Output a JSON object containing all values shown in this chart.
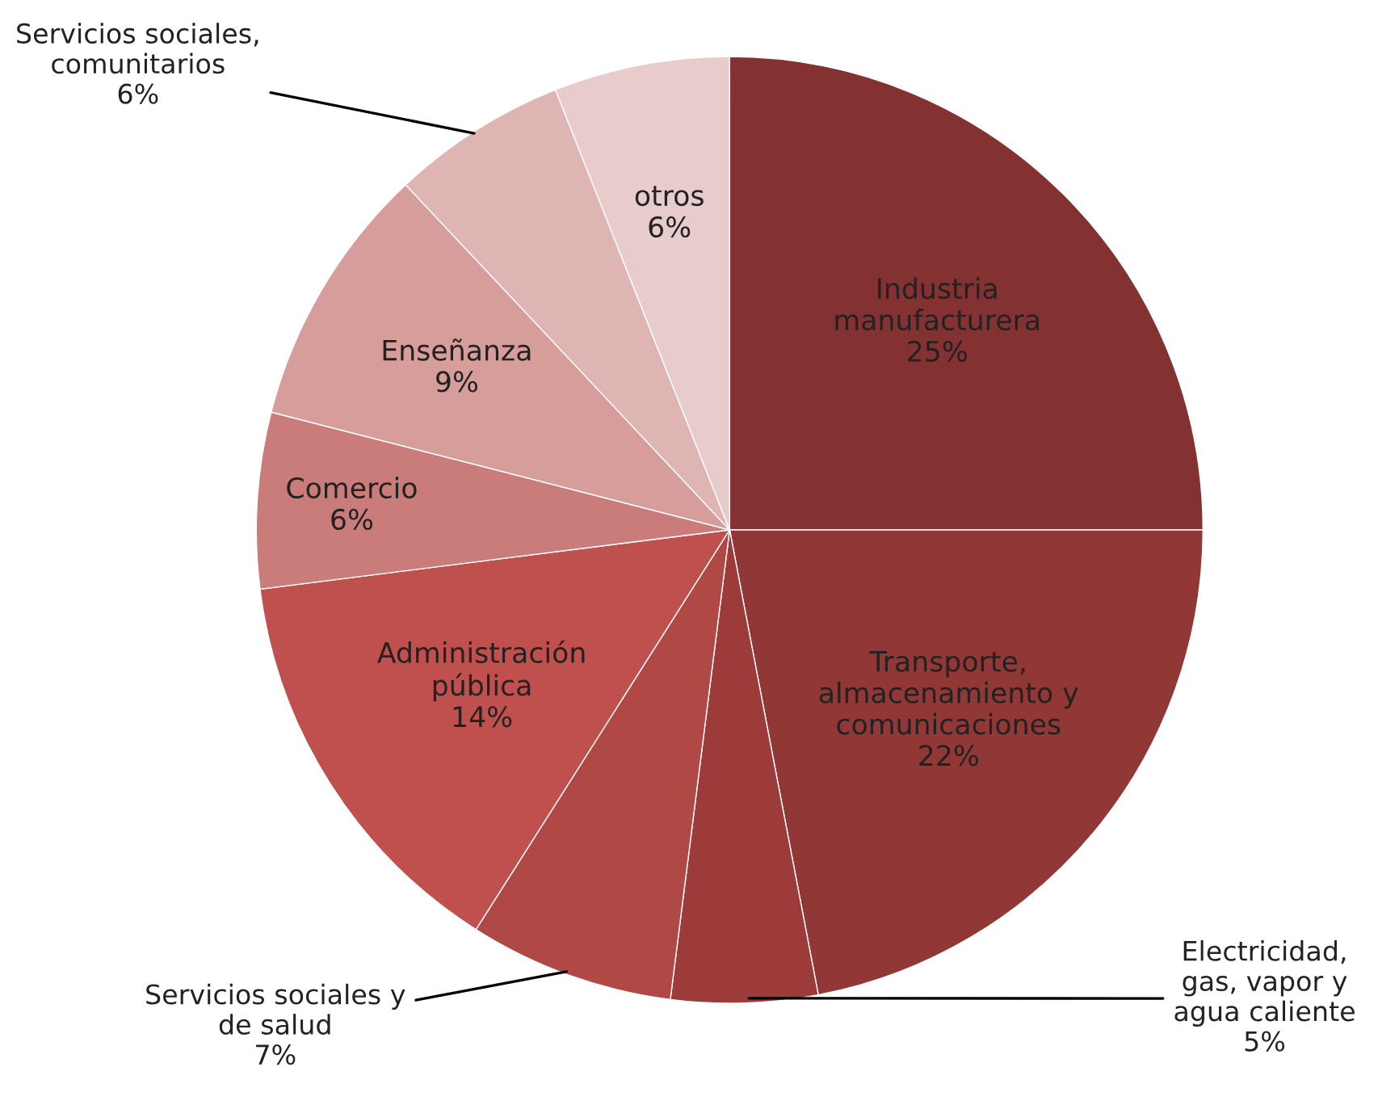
{
  "chart_data": {
    "type": "pie",
    "categories": [
      "Industria\nmanufacturera",
      "Transporte,\nalmacenamiento y\ncomunicaciones",
      "Electricidad,\ngas, vapor y\nagua caliente",
      "Servicios sociales y\nde salud",
      "Administración\npública",
      "Comercio",
      "Enseñanza",
      "Servicios sociales,\ncomunitarios",
      "otros"
    ],
    "values": [
      25,
      22,
      5,
      7,
      14,
      6,
      9,
      6,
      6
    ],
    "value_labels": [
      "25%",
      "22%",
      "5%",
      "7%",
      "14%",
      "6%",
      "9%",
      "6%",
      "6%"
    ],
    "colors": [
      "#843132",
      "#913735",
      "#9c3b39",
      "#b04845",
      "#c0504d",
      "#c97c7a",
      "#d69d9b",
      "#dfb5b4",
      "#e8cbcb"
    ]
  }
}
